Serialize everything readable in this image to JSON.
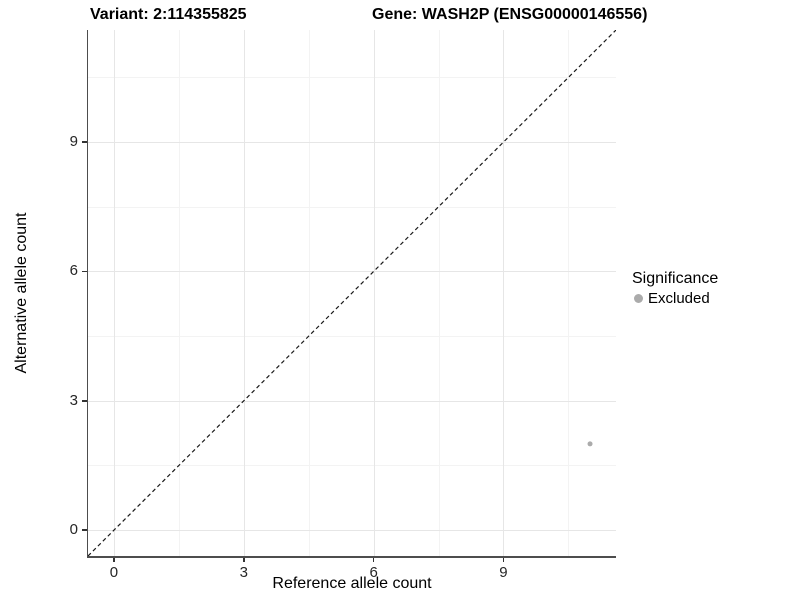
{
  "titles": {
    "variant": "Variant: 2:114355825",
    "gene": "Gene: WASH2P (ENSG00000146556)"
  },
  "axes": {
    "x": {
      "label": "Reference allele count",
      "ticks": [
        0,
        3,
        6,
        9
      ],
      "minor_ticks": [
        1.5,
        4.5,
        7.5,
        10.5
      ]
    },
    "y": {
      "label": "Alternative allele count",
      "ticks": [
        0,
        3,
        6,
        9
      ],
      "minor_ticks": [
        1.5,
        4.5,
        7.5,
        10.5
      ]
    }
  },
  "legend": {
    "title": "Significance",
    "items": [
      {
        "label": "Excluded",
        "color": "#ababab"
      }
    ]
  },
  "colors": {
    "point": "#ababab",
    "grid_major": "#e6e6e6",
    "grid_minor": "#f3f3f3",
    "axis_line": "#4d4d4d",
    "tick_mark": "#333333",
    "dashed_line": "#1a1a1a"
  },
  "chart_data": {
    "type": "scatter",
    "title": "Variant: 2:114355825 | Gene: WASH2P (ENSG00000146556)",
    "xlabel": "Reference allele count",
    "ylabel": "Alternative allele count",
    "xlim": [
      -0.6,
      11.6
    ],
    "ylim": [
      -0.6,
      11.6
    ],
    "grid": "major+minor",
    "legend_position": "right",
    "series": [
      {
        "name": "Excluded",
        "color": "#ababab",
        "points": [
          {
            "x": 11,
            "y": 2
          }
        ]
      }
    ],
    "reference_line": {
      "type": "identity y=x",
      "style": "dashed",
      "from": -0.6,
      "to": 11.6
    }
  }
}
